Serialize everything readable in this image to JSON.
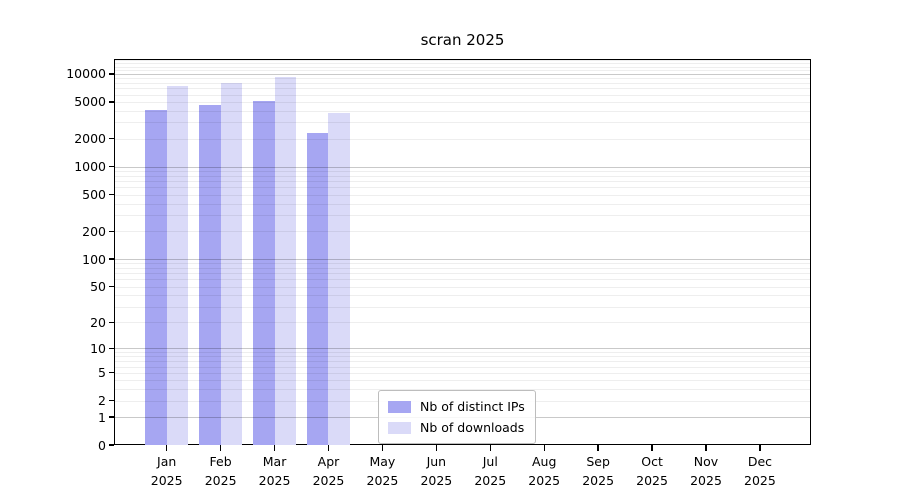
{
  "chart_data": {
    "type": "bar",
    "title": "scran 2025",
    "categories": [
      "Jan",
      "Feb",
      "Mar",
      "Apr",
      "May",
      "Jun",
      "Jul",
      "Aug",
      "Sep",
      "Oct",
      "Nov",
      "Dec"
    ],
    "year_label": "2025",
    "series": [
      {
        "name": "Nb of distinct IPs",
        "color": "#a6a6f2",
        "values": [
          4050,
          4650,
          5100,
          2300,
          null,
          null,
          null,
          null,
          null,
          null,
          null,
          null
        ]
      },
      {
        "name": "Nb of downloads",
        "color": "#dadaf8",
        "values": [
          7400,
          8000,
          9200,
          3750,
          null,
          null,
          null,
          null,
          null,
          null,
          null,
          null
        ]
      }
    ],
    "yscale": "log10(1+v)",
    "ytick_labels": [
      "0",
      "1",
      "2",
      "5",
      "10",
      "20",
      "50",
      "100",
      "200",
      "500",
      "1000",
      "2000",
      "5000",
      "10000"
    ],
    "ylim": [
      0,
      14500
    ],
    "grid": "major and minor horizontal gridlines",
    "legend_position": "lower center-left inside plot"
  }
}
